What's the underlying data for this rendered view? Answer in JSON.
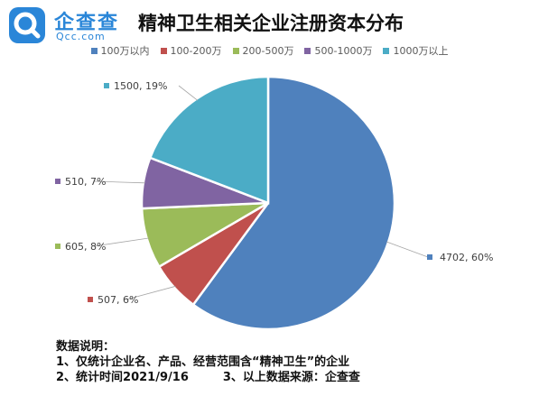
{
  "brand": {
    "name": "企查查",
    "domain": "Qcc.com",
    "color": "#2a86d8"
  },
  "chart_data": {
    "type": "pie",
    "title": "精神卫生相关企业注册资本分布",
    "legend_position": "top",
    "categories": [
      "100万以内",
      "100-200万",
      "200-500万",
      "500-1000万",
      "1000万以上"
    ],
    "values": [
      4702,
      507,
      605,
      510,
      1500
    ],
    "percents": [
      60,
      6,
      8,
      7,
      19
    ],
    "data_labels": [
      "4702, 60%",
      "507, 6%",
      "605, 8%",
      "510, 7%",
      "1500, 19%"
    ],
    "colors": [
      "#4f81bd",
      "#c0504d",
      "#9bbb59",
      "#8064a2",
      "#4bacc6"
    ]
  },
  "notes": {
    "heading": "数据说明：",
    "line1": "1、仅统计企业名、产品、经营范围含“精神卫生”的企业",
    "line2a": "2、统计时间2021/9/16",
    "line2b": "3、以上数据来源：企查查"
  }
}
